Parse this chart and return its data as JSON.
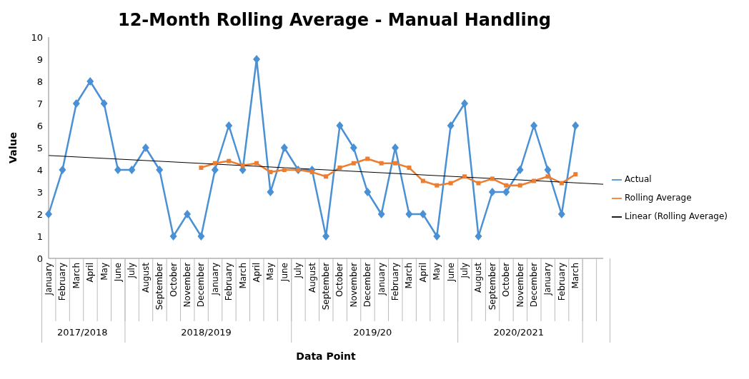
{
  "chart_data": {
    "type": "line",
    "title": "12-Month Rolling Average - Manual Handling",
    "xlabel": "Data Point",
    "ylabel": "Value",
    "categories": [
      "January",
      "February",
      "March",
      "April",
      "May",
      "June",
      "July",
      "August",
      "September",
      "October",
      "November",
      "December",
      "January",
      "February",
      "March",
      "April",
      "May",
      "June",
      "July",
      "August",
      "September",
      "October",
      "November",
      "December",
      "January",
      "February",
      "March",
      "April",
      "May",
      "June",
      "July",
      "August",
      "September",
      "October",
      "November",
      "December",
      "January",
      "February",
      "March",
      null,
      null
    ],
    "series": [
      {
        "name": "Actual",
        "color": "#4a90d4",
        "marker": "diamond",
        "values": [
          2,
          4,
          7,
          8,
          7,
          4,
          4,
          5,
          4,
          1,
          2,
          1,
          4,
          6,
          4,
          9,
          3,
          5,
          4,
          4,
          1,
          6,
          5,
          3,
          2,
          5,
          2,
          2,
          1,
          6,
          7,
          1,
          3,
          3,
          4,
          6,
          4,
          2,
          6,
          null,
          null
        ]
      },
      {
        "name": "Rolling Average",
        "color": "#ed7d31",
        "marker": "square",
        "values": [
          null,
          null,
          null,
          null,
          null,
          null,
          null,
          null,
          null,
          null,
          null,
          4.1,
          4.3,
          4.4,
          4.2,
          4.3,
          3.9,
          4.0,
          4.0,
          3.9,
          3.7,
          4.1,
          4.3,
          4.5,
          4.3,
          4.3,
          4.1,
          3.5,
          3.3,
          3.4,
          3.7,
          3.4,
          3.6,
          3.3,
          3.3,
          3.5,
          3.7,
          3.4,
          3.8,
          null,
          null
        ]
      },
      {
        "name": "Linear (Rolling Average)",
        "color": "#000000",
        "marker": "none",
        "values": [
          4.65,
          null,
          null,
          null,
          null,
          null,
          null,
          null,
          null,
          null,
          null,
          null,
          null,
          null,
          null,
          null,
          null,
          null,
          null,
          null,
          null,
          null,
          null,
          null,
          null,
          null,
          null,
          null,
          null,
          null,
          null,
          null,
          null,
          null,
          null,
          null,
          null,
          null,
          null,
          null,
          3.35
        ]
      }
    ],
    "annotations": [
      "2017/2018",
      "2018/2019",
      "2019/20",
      "2020/2021"
    ],
    "ylim": [
      0,
      10
    ],
    "yticks": [
      0,
      1,
      2,
      3,
      4,
      5,
      6,
      7,
      8,
      9,
      10
    ],
    "grid": false,
    "legend": "right",
    "line_style": "solid"
  }
}
